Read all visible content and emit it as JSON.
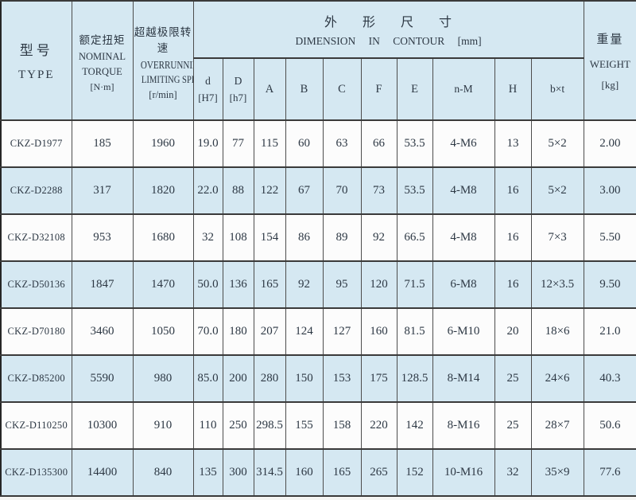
{
  "colors": {
    "row_blue": "#d5e8f2",
    "row_white": "#fcfcfc",
    "border_dark": "#3a3a3a",
    "text": "#2d3844"
  },
  "header": {
    "type": {
      "zh": "型号",
      "en": "TYPE"
    },
    "torque": {
      "zh": "额定扭矩",
      "en_line1": "NOMINAL",
      "en_line2": "TORQUE",
      "unit": "[N·m]"
    },
    "speed": {
      "zh": "超越极限转速",
      "en_line1": "OVERRUNNING",
      "en_line2": "LIMITING SPEEDS",
      "unit": "[r/min]"
    },
    "dimension_group": {
      "zh": "外 形 尺 寸",
      "en": "DIMENSION IN CONTOUR [mm]"
    },
    "weight": {
      "zh": "重量",
      "en": "WEIGHT",
      "unit": "[kg]"
    },
    "sub_d": {
      "line1": "d",
      "line2": "[H7]"
    },
    "sub_D": {
      "line1": "D",
      "line2": "[h7]"
    },
    "sub_cols": [
      "A",
      "B",
      "C",
      "F",
      "E",
      "n-M",
      "H",
      "b×t"
    ]
  },
  "rows": [
    [
      "CKZ-D1977",
      "185",
      "1960",
      "19.0",
      "77",
      "115",
      "60",
      "63",
      "66",
      "53.5",
      "4-M6",
      "13",
      "5×2",
      "2.00"
    ],
    [
      "CKZ-D2288",
      "317",
      "1820",
      "22.0",
      "88",
      "122",
      "67",
      "70",
      "73",
      "53.5",
      "4-M8",
      "16",
      "5×2",
      "3.00"
    ],
    [
      "CKZ-D32108",
      "953",
      "1680",
      "32",
      "108",
      "154",
      "86",
      "89",
      "92",
      "66.5",
      "4-M8",
      "16",
      "7×3",
      "5.50"
    ],
    [
      "CKZ-D50136",
      "1847",
      "1470",
      "50.0",
      "136",
      "165",
      "92",
      "95",
      "120",
      "71.5",
      "6-M8",
      "16",
      "12×3.5",
      "9.50"
    ],
    [
      "CKZ-D70180",
      "3460",
      "1050",
      "70.0",
      "180",
      "207",
      "124",
      "127",
      "160",
      "81.5",
      "6-M10",
      "20",
      "18×6",
      "21.0"
    ],
    [
      "CKZ-D85200",
      "5590",
      "980",
      "85.0",
      "200",
      "280",
      "150",
      "153",
      "175",
      "128.5",
      "8-M14",
      "25",
      "24×6",
      "40.3"
    ],
    [
      "CKZ-D110250",
      "10300",
      "910",
      "110",
      "250",
      "298.5",
      "155",
      "158",
      "220",
      "142",
      "8-M16",
      "25",
      "28×7",
      "50.6"
    ],
    [
      "CKZ-D135300",
      "14400",
      "840",
      "135",
      "300",
      "314.5",
      "160",
      "165",
      "265",
      "152",
      "10-M16",
      "32",
      "35×9",
      "77.6"
    ]
  ]
}
